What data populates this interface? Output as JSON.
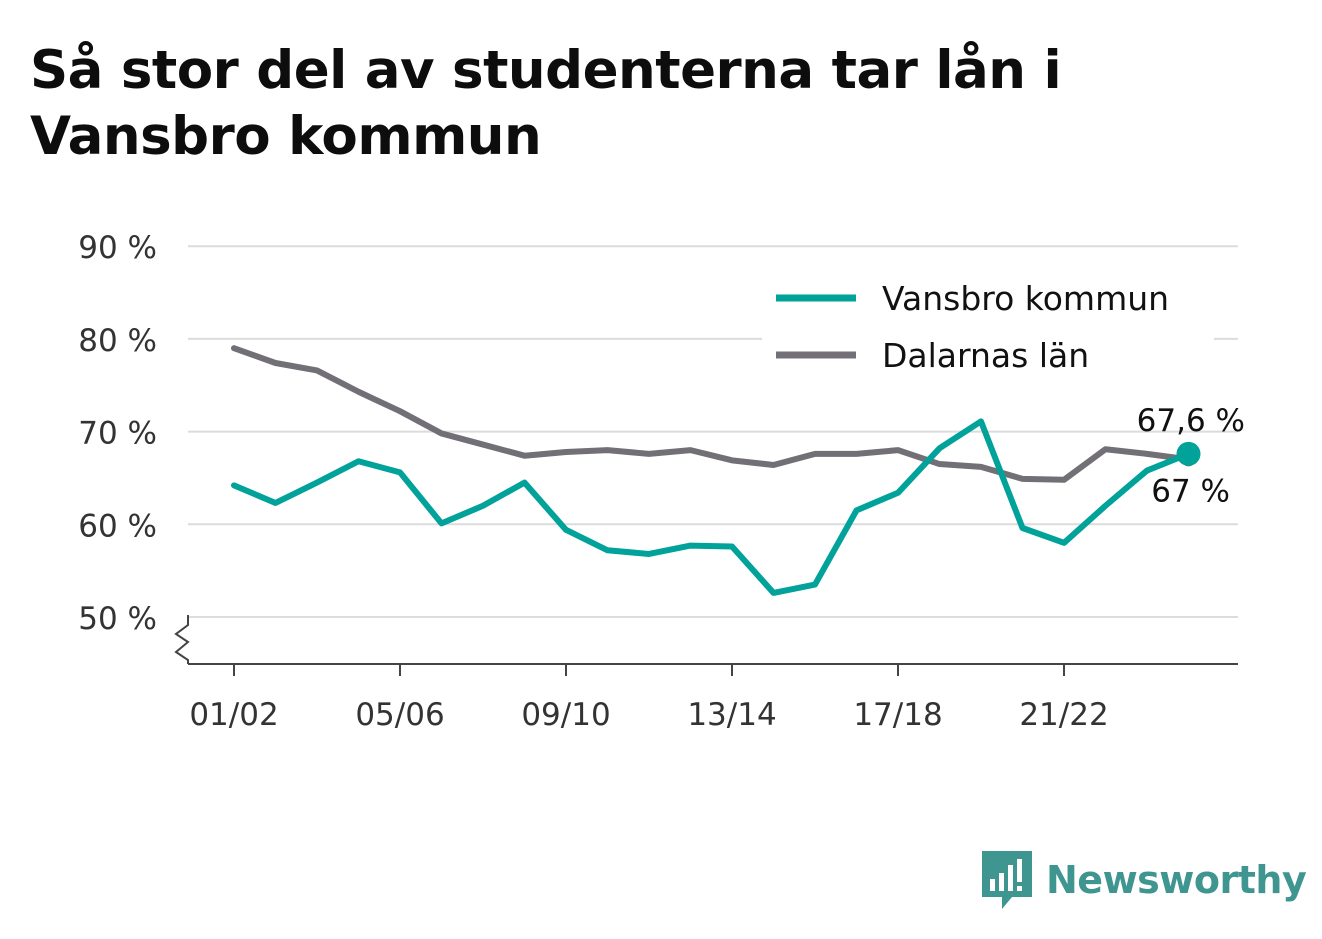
{
  "title": "Så stor del av studenterna tar lån i Vansbro kommun",
  "brand": {
    "name": "Newsworthy",
    "icon": "bar-chart-speech-bubble-icon"
  },
  "chart_data": {
    "type": "line",
    "title": "Så stor del av studenterna tar lån i Vansbro kommun",
    "xlabel": "",
    "ylabel": "",
    "x": [
      "01/02",
      "02/03",
      "03/04",
      "04/05",
      "05/06",
      "06/07",
      "07/08",
      "08/09",
      "09/10",
      "10/11",
      "11/12",
      "12/13",
      "13/14",
      "14/15",
      "15/16",
      "16/17",
      "17/18",
      "18/19",
      "19/20",
      "20/21",
      "21/22",
      "22/23",
      "23/24",
      "24/25"
    ],
    "xticks": [
      "01/02",
      "05/06",
      "09/10",
      "13/14",
      "17/18",
      "21/22"
    ],
    "yticks": [
      50,
      60,
      70,
      80,
      90
    ],
    "ytick_labels": [
      "50 %",
      "60 %",
      "70 %",
      "80 %",
      "90 %"
    ],
    "ylim": [
      45,
      90
    ],
    "y_axis_break": true,
    "grid": true,
    "legend_position": "top-right",
    "series": [
      {
        "name": "Vansbro kommun",
        "color": "#00a29a",
        "values": [
          64.2,
          62.3,
          64.5,
          66.8,
          65.6,
          60.1,
          62.0,
          64.5,
          59.4,
          57.2,
          56.8,
          57.7,
          57.6,
          52.6,
          53.5,
          61.5,
          63.4,
          68.2,
          71.1,
          59.6,
          58.0,
          62.0,
          65.8,
          67.6
        ],
        "end_label": "67,6 %"
      },
      {
        "name": "Dalarnas län",
        "color": "#727076",
        "values": [
          79.0,
          77.4,
          76.6,
          74.3,
          72.2,
          69.8,
          68.6,
          67.4,
          67.8,
          68.0,
          67.6,
          68.0,
          66.9,
          66.4,
          67.6,
          67.6,
          68.0,
          66.5,
          66.2,
          64.9,
          64.8,
          68.1,
          67.6,
          67.0
        ],
        "end_label": "67 %"
      }
    ]
  }
}
